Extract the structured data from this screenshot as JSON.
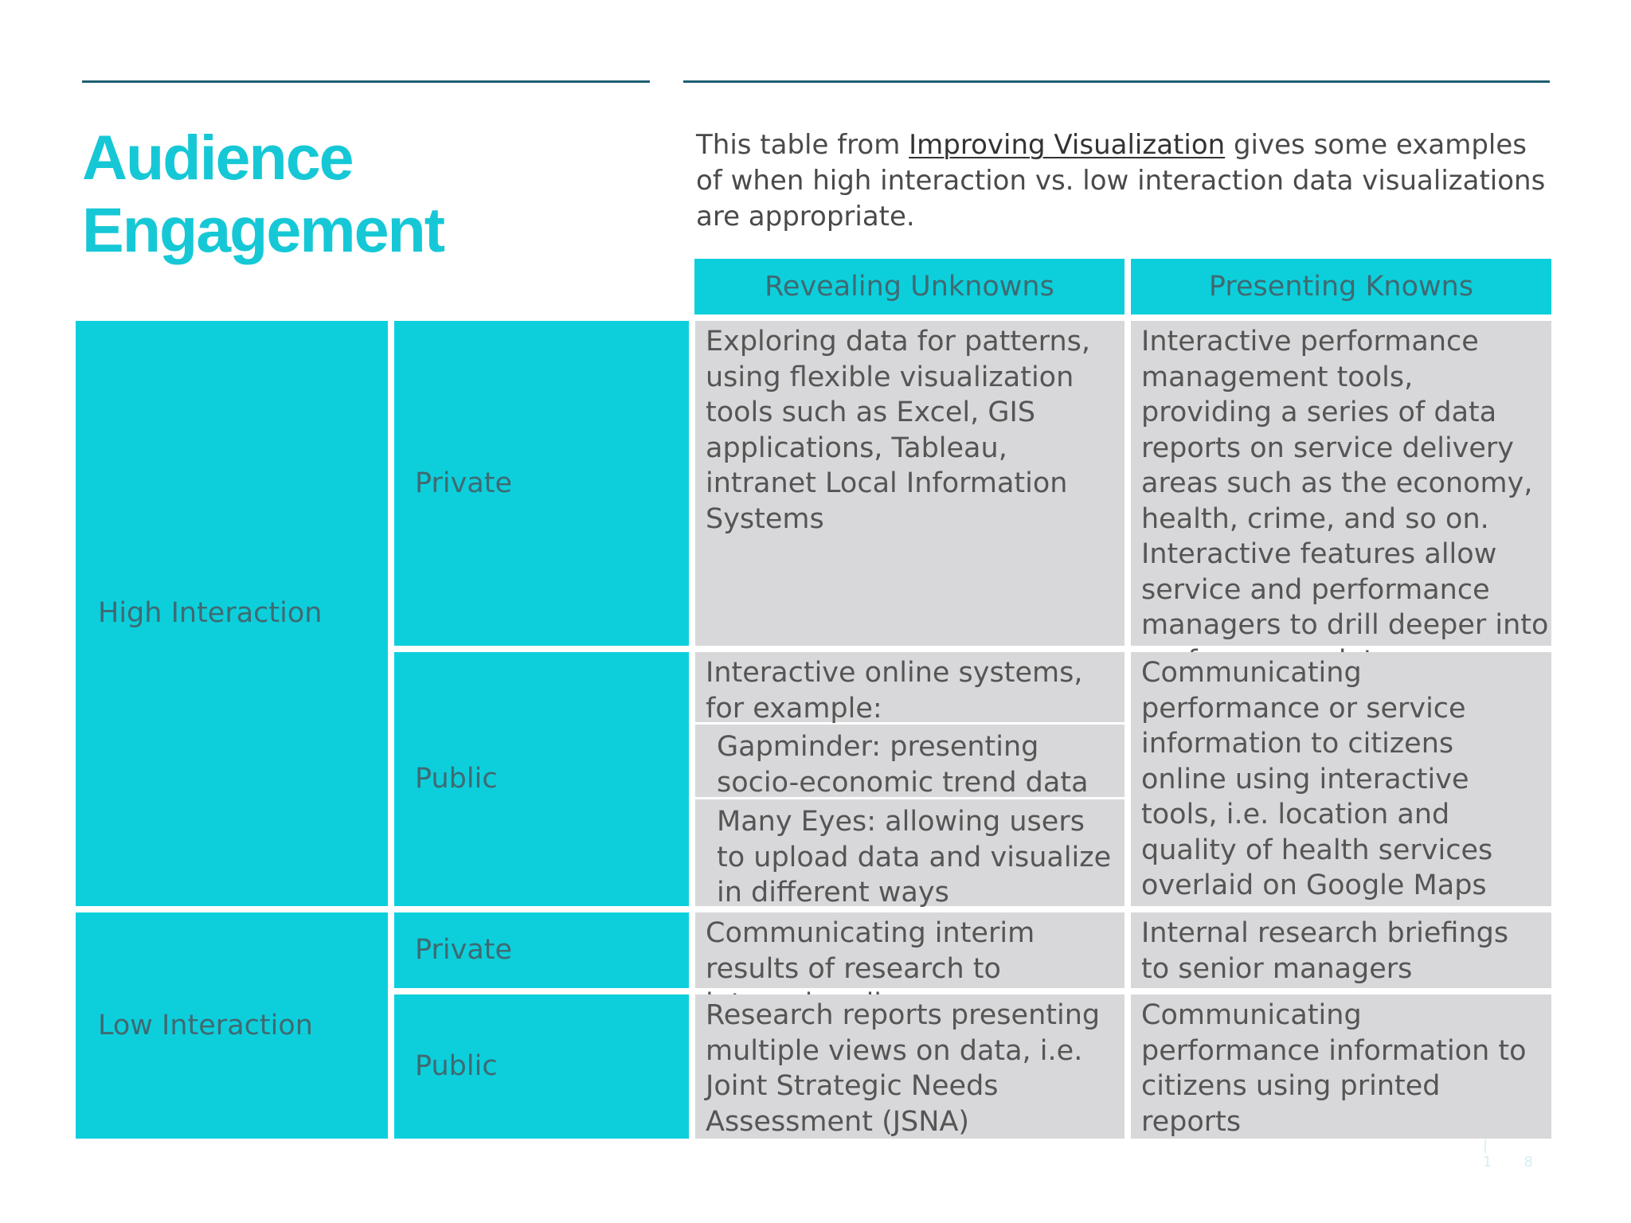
{
  "title": {
    "line1": "Audience",
    "line2": "Engagement"
  },
  "intro": {
    "before": "This table from ",
    "link": "Improving Visualization",
    "after": " gives some examples of when high interaction vs. low interaction data visualizations are appropriate."
  },
  "table": {
    "headers": [
      "Revealing Unknowns",
      "Presenting Knowns"
    ],
    "rows": {
      "high_interaction_label": "High Interaction",
      "low_interaction_label": "Low Interaction",
      "high_private": {
        "audience": "Private",
        "unknowns": "Exploring data for patterns, using flexible visualization tools such as Excel, GIS applications, Tableau, intranet Local Information Systems",
        "knowns": "Interactive performance management tools, providing a series of data reports on service delivery areas such as the economy, health, crime, and so on. Interactive features allow service and performance managers to drill deeper into performance data"
      },
      "high_public": {
        "audience": "Public",
        "unknowns_intro": "Interactive online systems, for example:",
        "unknowns_example1": "Gapminder: presenting socio-economic trend data",
        "unknowns_example2": "Many Eyes: allowing users to upload data and visualize in different ways",
        "knowns": "Communicating performance or service information to citizens online using interactive tools, i.e. location and quality of health services overlaid on Google Maps"
      },
      "low_private": {
        "audience": "Private",
        "unknowns": "Communicating interim results of research to internal audience",
        "knowns": "Internal research briefings to senior managers"
      },
      "low_public": {
        "audience": "Public",
        "unknowns": "Research reports presenting multiple views on data, i.e. Joint Strategic Needs Assessment (JSNA)",
        "knowns": "Communicating performance information to citizens using printed reports"
      }
    }
  },
  "page_number": "| 18",
  "colors": {
    "accent": "#0dcfdc",
    "title": "#16c8d6",
    "rule": "#1e5f73",
    "cell_grey": "#d8d8da"
  }
}
